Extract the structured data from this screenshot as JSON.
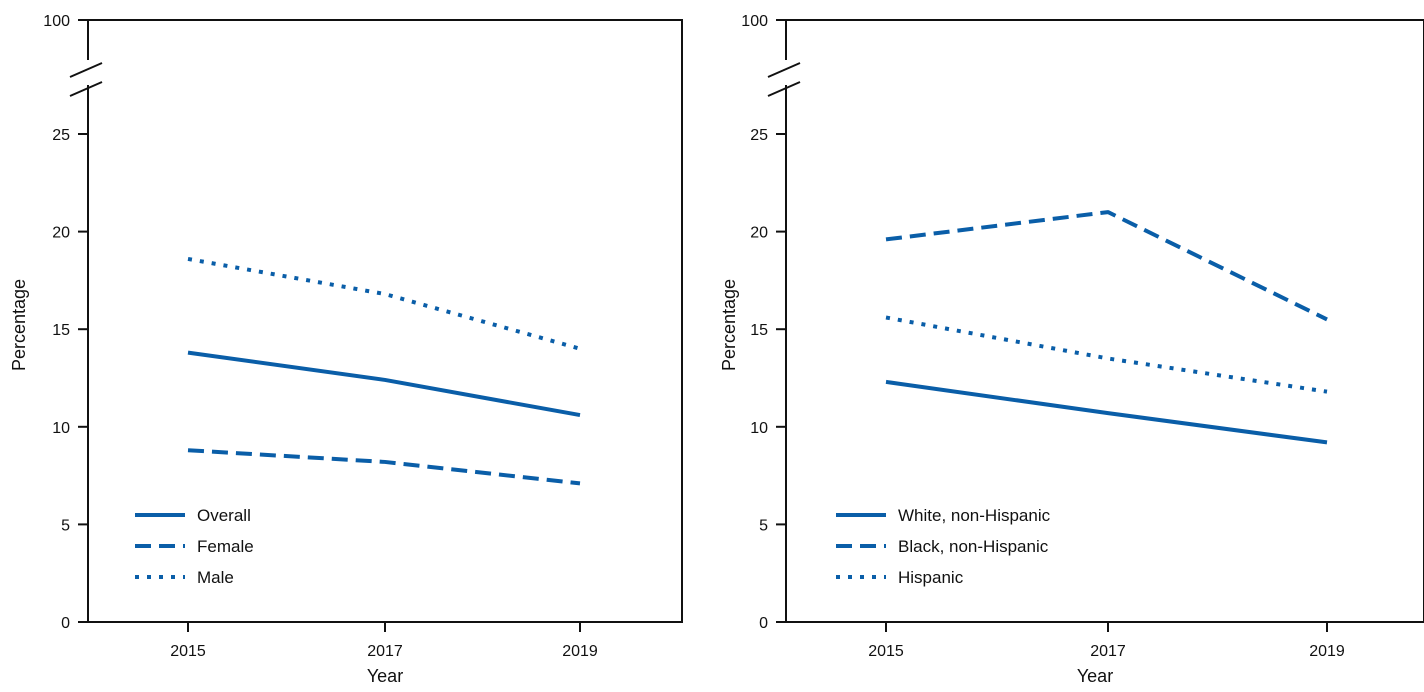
{
  "chart_data": [
    {
      "type": "line",
      "xlabel": "Year",
      "ylabel": "Percentage",
      "x": [
        2015,
        2017,
        2019
      ],
      "x_tick_labels": [
        "2015",
        "2017",
        "2019"
      ],
      "y_tick_labels": [
        "0",
        "5",
        "10",
        "15",
        "20",
        "25",
        "100"
      ],
      "ylim": [
        0,
        25
      ],
      "axis_break": {
        "from": 25,
        "to": 100
      },
      "grid": false,
      "legend_position": "bottom-left",
      "series": [
        {
          "name": "Overall",
          "values": [
            13.8,
            12.4,
            10.6
          ],
          "style": "solid",
          "color": "#0a5ea8"
        },
        {
          "name": "Female",
          "values": [
            8.8,
            8.2,
            7.1
          ],
          "style": "dashed",
          "color": "#0a5ea8"
        },
        {
          "name": "Male",
          "values": [
            18.6,
            16.8,
            14.0
          ],
          "style": "dotted",
          "color": "#0a5ea8"
        }
      ]
    },
    {
      "type": "line",
      "xlabel": "Year",
      "ylabel": "Percentage",
      "x": [
        2015,
        2017,
        2019
      ],
      "x_tick_labels": [
        "2015",
        "2017",
        "2019"
      ],
      "y_tick_labels": [
        "0",
        "5",
        "10",
        "15",
        "20",
        "25",
        "100"
      ],
      "ylim": [
        0,
        25
      ],
      "axis_break": {
        "from": 25,
        "to": 100
      },
      "grid": false,
      "legend_position": "bottom-left",
      "series": [
        {
          "name": "White, non-Hispanic",
          "values": [
            12.3,
            10.7,
            9.2
          ],
          "style": "solid",
          "color": "#0a5ea8"
        },
        {
          "name": "Black, non-Hispanic",
          "values": [
            19.6,
            21.0,
            15.5
          ],
          "style": "dashed",
          "color": "#0a5ea8"
        },
        {
          "name": "Hispanic",
          "values": [
            15.6,
            13.5,
            11.8
          ],
          "style": "dotted",
          "color": "#0a5ea8"
        }
      ]
    }
  ]
}
